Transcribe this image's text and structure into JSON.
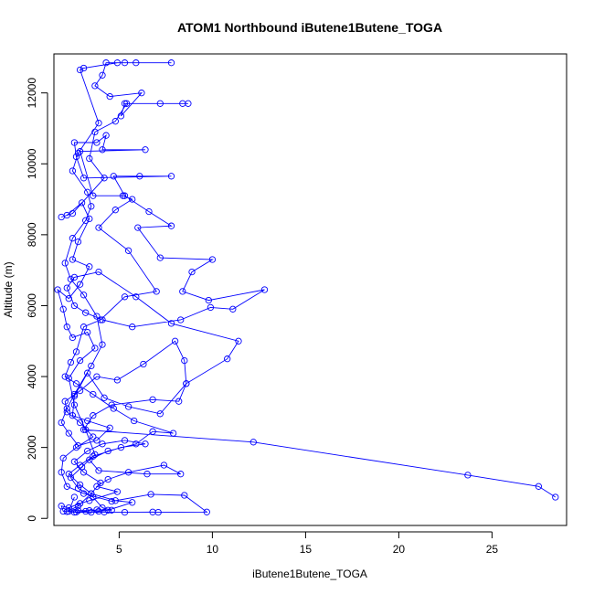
{
  "chart_data": {
    "type": "line",
    "title": "ATOM1 Northbound iButene1Butene_TOGA",
    "xlabel": "iButene1Butene_TOGA",
    "ylabel": "Altitude (m)",
    "xlim": [
      1.5,
      29.0
    ],
    "ylim": [
      -200,
      13100
    ],
    "xticks": [
      5,
      10,
      15,
      20,
      25
    ],
    "yticks": [
      0,
      2000,
      4000,
      6000,
      8000,
      10000,
      12000
    ],
    "grid": false,
    "legend": "none",
    "color": "#0000ff",
    "series": [
      {
        "markers": "open-circle",
        "points": [
          [
            28.4,
            600
          ],
          [
            27.5,
            900
          ],
          [
            23.7,
            1220
          ],
          [
            12.2,
            2150
          ],
          [
            3.1,
            2500
          ],
          [
            3.6,
            2900
          ],
          [
            4.6,
            3200
          ],
          [
            6.8,
            3350
          ],
          [
            8.2,
            3300
          ],
          [
            8.6,
            3800
          ],
          [
            10.8,
            4500
          ],
          [
            11.4,
            5000
          ],
          [
            7.8,
            5500
          ],
          [
            5.9,
            6250
          ],
          [
            3.9,
            6950
          ],
          [
            2.6,
            6800
          ],
          [
            2.2,
            6500
          ],
          [
            2.6,
            6000
          ],
          [
            3.2,
            5800
          ],
          [
            4.1,
            5600
          ],
          [
            5.7,
            5400
          ],
          [
            8.3,
            5600
          ],
          [
            9.9,
            5950
          ],
          [
            11.1,
            5900
          ],
          [
            12.8,
            6450
          ],
          [
            9.8,
            6150
          ],
          [
            8.4,
            6400
          ],
          [
            8.9,
            6950
          ],
          [
            10.0,
            7300
          ],
          [
            7.2,
            7350
          ],
          [
            6.0,
            8200
          ],
          [
            7.8,
            8250
          ],
          [
            6.6,
            8650
          ],
          [
            5.3,
            9100
          ],
          [
            4.7,
            9650
          ],
          [
            6.1,
            9650
          ],
          [
            7.8,
            9650
          ],
          [
            3.1,
            9600
          ],
          [
            2.7,
            10200
          ],
          [
            2.6,
            10600
          ],
          [
            3.8,
            10600
          ],
          [
            4.3,
            10800
          ],
          [
            4.1,
            10400
          ],
          [
            6.4,
            10400
          ],
          [
            2.9,
            10350
          ],
          [
            3.6,
            9100
          ],
          [
            5.2,
            9100
          ],
          [
            5.7,
            9000
          ],
          [
            4.8,
            8700
          ],
          [
            3.9,
            8200
          ],
          [
            5.5,
            7550
          ],
          [
            7.0,
            6400
          ],
          [
            5.3,
            6250
          ],
          [
            4.0,
            5600
          ],
          [
            3.1,
            5400
          ],
          [
            2.7,
            4700
          ],
          [
            2.4,
            4400
          ],
          [
            2.1,
            4000
          ],
          [
            2.7,
            3800
          ],
          [
            3.6,
            3500
          ],
          [
            4.7,
            3100
          ],
          [
            5.8,
            2750
          ],
          [
            7.9,
            2400
          ],
          [
            6.8,
            2450
          ],
          [
            5.9,
            2100
          ],
          [
            4.4,
            1900
          ],
          [
            3.4,
            1650
          ],
          [
            3.9,
            1350
          ],
          [
            6.5,
            1250
          ],
          [
            8.3,
            1250
          ],
          [
            7.4,
            1500
          ],
          [
            5.5,
            1300
          ],
          [
            4.4,
            1100
          ],
          [
            3.8,
            900
          ],
          [
            4.9,
            750
          ],
          [
            3.4,
            500
          ],
          [
            2.9,
            420
          ],
          [
            2.3,
            300
          ],
          [
            1.9,
            350
          ],
          [
            2.0,
            200
          ],
          [
            2.6,
            170
          ],
          [
            3.5,
            170
          ],
          [
            4.2,
            180
          ],
          [
            5.3,
            170
          ],
          [
            6.8,
            180
          ],
          [
            7.1,
            170
          ],
          [
            9.7,
            180
          ],
          [
            8.5,
            650
          ],
          [
            6.7,
            680
          ],
          [
            4.6,
            480
          ],
          [
            3.1,
            700
          ],
          [
            2.2,
            900
          ],
          [
            1.9,
            1300
          ],
          [
            2.0,
            1700
          ],
          [
            2.7,
            2000
          ],
          [
            3.6,
            2300
          ],
          [
            2.9,
            2700
          ],
          [
            2.2,
            3000
          ],
          [
            2.1,
            3300
          ],
          [
            2.9,
            3600
          ],
          [
            3.8,
            4000
          ],
          [
            4.9,
            3900
          ],
          [
            6.3,
            4350
          ],
          [
            8.0,
            5000
          ],
          [
            8.5,
            4450
          ],
          [
            8.6,
            3800
          ],
          [
            7.2,
            2950
          ],
          [
            5.5,
            3150
          ],
          [
            4.2,
            3400
          ],
          [
            3.3,
            4100
          ],
          [
            2.6,
            3450
          ],
          [
            2.5,
            2900
          ],
          [
            3.3,
            2750
          ],
          [
            4.5,
            2550
          ],
          [
            3.8,
            2200
          ],
          [
            2.8,
            2050
          ],
          [
            2.3,
            2400
          ],
          [
            1.9,
            2700
          ],
          [
            2.2,
            3100
          ],
          [
            2.6,
            3500
          ],
          [
            3.5,
            4300
          ],
          [
            4.1,
            4900
          ],
          [
            3.8,
            5700
          ],
          [
            3.1,
            6300
          ],
          [
            2.4,
            6750
          ],
          [
            2.1,
            7200
          ],
          [
            2.5,
            7900
          ],
          [
            3.2,
            8400
          ],
          [
            3.5,
            8800
          ],
          [
            3.3,
            9200
          ],
          [
            2.5,
            9800
          ],
          [
            2.8,
            10300
          ],
          [
            3.9,
            11150
          ],
          [
            2.9,
            12650
          ],
          [
            3.1,
            12700
          ],
          [
            4.9,
            12850
          ],
          [
            5.9,
            12850
          ],
          [
            7.8,
            12850
          ],
          [
            5.3,
            12850
          ],
          [
            4.3,
            12850
          ],
          [
            4.1,
            12500
          ],
          [
            3.7,
            12200
          ],
          [
            4.5,
            11900
          ],
          [
            6.2,
            12000
          ],
          [
            5.1,
            11350
          ],
          [
            5.3,
            11700
          ],
          [
            7.2,
            11700
          ],
          [
            8.4,
            11700
          ],
          [
            8.7,
            11700
          ],
          [
            5.4,
            11700
          ],
          [
            4.8,
            11200
          ],
          [
            3.7,
            10900
          ],
          [
            3.4,
            10150
          ],
          [
            4.2,
            9600
          ],
          [
            2.5,
            8600
          ],
          [
            1.9,
            8500
          ],
          [
            2.2,
            8550
          ],
          [
            3.0,
            8900
          ],
          [
            3.4,
            8450
          ],
          [
            2.8,
            7800
          ],
          [
            2.5,
            7300
          ],
          [
            3.4,
            7100
          ],
          [
            2.9,
            6600
          ],
          [
            2.3,
            6200
          ],
          [
            1.7,
            6450
          ],
          [
            2.0,
            5900
          ],
          [
            2.2,
            5400
          ],
          [
            2.5,
            5100
          ],
          [
            3.3,
            5250
          ],
          [
            3.7,
            4800
          ],
          [
            2.9,
            4450
          ],
          [
            2.3,
            3950
          ],
          [
            2.6,
            3200
          ],
          [
            3.2,
            2500
          ],
          [
            3.7,
            1800
          ],
          [
            3.0,
            1450
          ],
          [
            2.4,
            1150
          ],
          [
            2.8,
            850
          ],
          [
            3.6,
            600
          ],
          [
            4.1,
            300
          ],
          [
            4.6,
            230
          ],
          [
            3.8,
            240
          ],
          [
            3.2,
            200
          ],
          [
            2.7,
            180
          ],
          [
            2.2,
            190
          ],
          [
            2.8,
            350
          ],
          [
            3.5,
            700
          ],
          [
            4.0,
            1000
          ],
          [
            3.1,
            1300
          ],
          [
            2.6,
            1600
          ],
          [
            3.3,
            1900
          ],
          [
            4.1,
            2100
          ],
          [
            5.3,
            2200
          ],
          [
            6.4,
            2100
          ],
          [
            5.1,
            2000
          ],
          [
            3.6,
            1750
          ],
          [
            2.9,
            1500
          ],
          [
            2.3,
            1250
          ],
          [
            2.9,
            950
          ],
          [
            3.5,
            700
          ],
          [
            4.8,
            500
          ],
          [
            5.7,
            450
          ],
          [
            4.4,
            230
          ],
          [
            3.9,
            200
          ],
          [
            3.4,
            220
          ],
          [
            2.8,
            220
          ],
          [
            2.3,
            200
          ],
          [
            2.6,
            600
          ]
        ]
      }
    ]
  }
}
